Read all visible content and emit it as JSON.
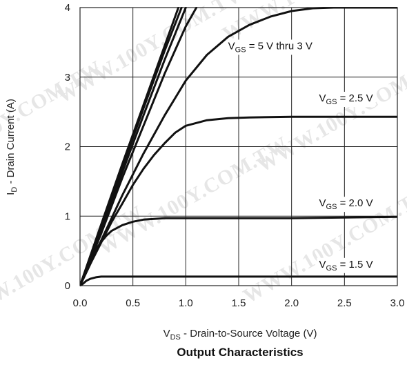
{
  "watermark": "WWW.100Y.COM.TW",
  "chart_data": {
    "type": "line",
    "title": "Output Characteristics",
    "xlabel": {
      "main": "V",
      "sub": "DS",
      "rest": " - Drain-to-Source Voltage (V)"
    },
    "ylabel": {
      "main": "I",
      "sub": "D",
      "rest": " - Drain Current (A)"
    },
    "xlim": [
      0,
      3
    ],
    "ylim": [
      0,
      4
    ],
    "xticks": [
      {
        "v": 0,
        "label": "0.0"
      },
      {
        "v": 0.5,
        "label": "0.5"
      },
      {
        "v": 1.0,
        "label": "1.0"
      },
      {
        "v": 1.5,
        "label": "1.5"
      },
      {
        "v": 2.0,
        "label": "2.0"
      },
      {
        "v": 2.5,
        "label": "2.5"
      },
      {
        "v": 3.0,
        "label": "3.0"
      }
    ],
    "yticks": [
      {
        "v": 0,
        "label": "0"
      },
      {
        "v": 1,
        "label": "1"
      },
      {
        "v": 2,
        "label": "2"
      },
      {
        "v": 3,
        "label": "3"
      },
      {
        "v": 4,
        "label": "4"
      }
    ],
    "grid": true,
    "series": [
      {
        "id": "vgs5",
        "x": [
          0,
          0.2,
          0.4,
          0.6,
          0.8,
          0.93
        ],
        "y": [
          0,
          0.88,
          1.75,
          2.6,
          3.45,
          4.0
        ]
      },
      {
        "id": "vgs45",
        "x": [
          0,
          0.2,
          0.4,
          0.6,
          0.8,
          0.96
        ],
        "y": [
          0,
          0.85,
          1.7,
          2.55,
          3.38,
          4.0
        ]
      },
      {
        "id": "vgs4",
        "x": [
          0,
          0.2,
          0.4,
          0.6,
          0.8,
          1.0
        ],
        "y": [
          0,
          0.8,
          1.63,
          2.45,
          3.25,
          4.0
        ]
      },
      {
        "id": "vgs35",
        "x": [
          0,
          0.2,
          0.4,
          0.6,
          0.8,
          1.0,
          1.1
        ],
        "y": [
          0,
          0.75,
          1.55,
          2.3,
          3.05,
          3.73,
          4.0
        ]
      },
      {
        "id": "vgs3",
        "x": [
          0,
          0.2,
          0.4,
          0.6,
          0.8,
          1.0,
          1.2,
          1.4,
          1.6,
          1.8,
          2.0,
          2.2,
          2.4,
          2.6,
          2.8,
          3.0
        ],
        "y": [
          0,
          0.65,
          1.3,
          1.9,
          2.45,
          2.95,
          3.32,
          3.58,
          3.75,
          3.87,
          3.95,
          3.99,
          4.0,
          4.0,
          4.0,
          4.0
        ]
      },
      {
        "id": "vgs25",
        "x": [
          0,
          0.1,
          0.2,
          0.3,
          0.4,
          0.5,
          0.6,
          0.7,
          0.8,
          0.9,
          1.0,
          1.2,
          1.4,
          1.6,
          2.0,
          2.5,
          3.0
        ],
        "y": [
          0,
          0.32,
          0.62,
          0.92,
          1.18,
          1.45,
          1.68,
          1.88,
          2.05,
          2.2,
          2.3,
          2.38,
          2.41,
          2.42,
          2.43,
          2.43,
          2.43
        ]
      },
      {
        "id": "vgs20",
        "x": [
          0,
          0.05,
          0.1,
          0.15,
          0.2,
          0.25,
          0.3,
          0.4,
          0.5,
          0.6,
          0.7,
          0.8,
          1.0,
          1.5,
          2.0,
          3.0
        ],
        "y": [
          0,
          0.2,
          0.38,
          0.52,
          0.63,
          0.72,
          0.79,
          0.87,
          0.92,
          0.95,
          0.96,
          0.97,
          0.97,
          0.97,
          0.97,
          0.99
        ]
      },
      {
        "id": "vgs15",
        "x": [
          0,
          0.03,
          0.06,
          0.1,
          0.15,
          0.2,
          0.3,
          0.5,
          1.0,
          2.0,
          3.0
        ],
        "y": [
          0,
          0.03,
          0.07,
          0.1,
          0.12,
          0.13,
          0.13,
          0.13,
          0.13,
          0.13,
          0.13
        ]
      }
    ],
    "annotations": [
      {
        "id": "a1",
        "main": "V",
        "sub": "GS",
        "rest": " = 5 V thru 3 V",
        "x": 1.4,
        "y": 3.4
      },
      {
        "id": "a2",
        "main": "V",
        "sub": "GS",
        "rest": " = 2.5 V",
        "x": 2.26,
        "y": 2.65
      },
      {
        "id": "a3",
        "main": "V",
        "sub": "GS",
        "rest": " = 2.0 V",
        "x": 2.26,
        "y": 1.14
      },
      {
        "id": "a4",
        "main": "V",
        "sub": "GS",
        "rest": " = 1.5 V",
        "x": 2.26,
        "y": 0.26
      }
    ]
  }
}
